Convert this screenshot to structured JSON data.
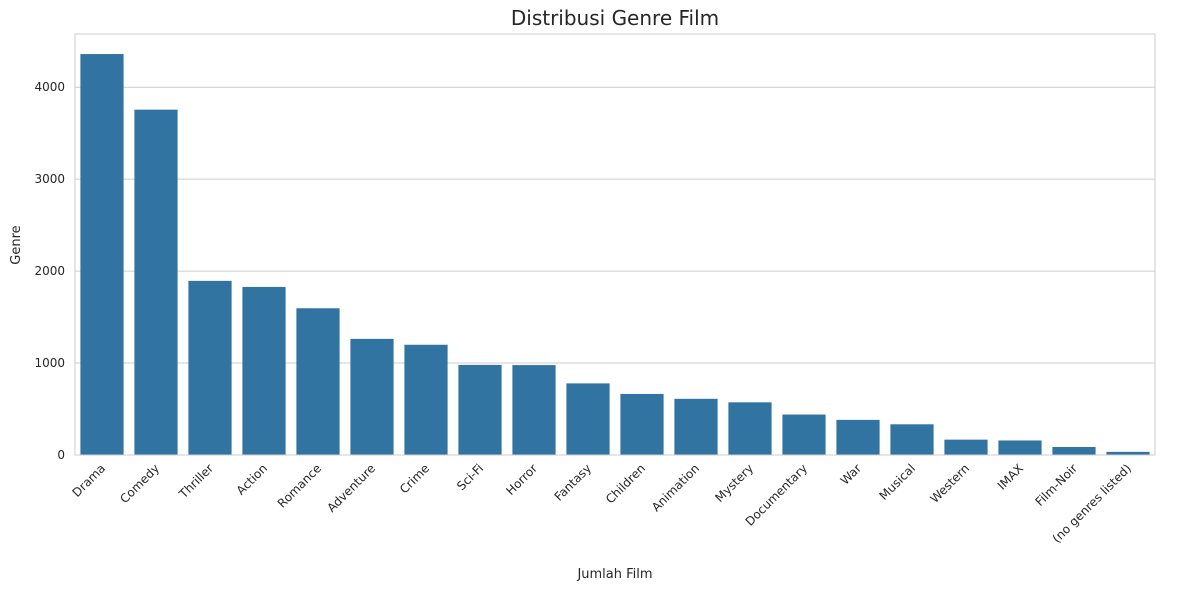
{
  "chart_data": {
    "type": "bar",
    "title": "Distribusi Genre Film",
    "xlabel": "Jumlah Film",
    "ylabel": "Genre",
    "categories": [
      "Drama",
      "Comedy",
      "Thriller",
      "Action",
      "Romance",
      "Adventure",
      "Crime",
      "Sci-Fi",
      "Horror",
      "Fantasy",
      "Children",
      "Animation",
      "Mystery",
      "Documentary",
      "War",
      "Musical",
      "Western",
      "IMAX",
      "Film-Noir",
      "(no genres listed)"
    ],
    "values": [
      4361,
      3756,
      1894,
      1828,
      1596,
      1263,
      1199,
      980,
      978,
      779,
      664,
      611,
      573,
      440,
      382,
      334,
      167,
      158,
      87,
      34
    ],
    "ylim": [
      0,
      4579
    ],
    "yticks": [
      0,
      1000,
      2000,
      3000,
      4000
    ],
    "grid": true,
    "bar_color": "#3274a1"
  }
}
